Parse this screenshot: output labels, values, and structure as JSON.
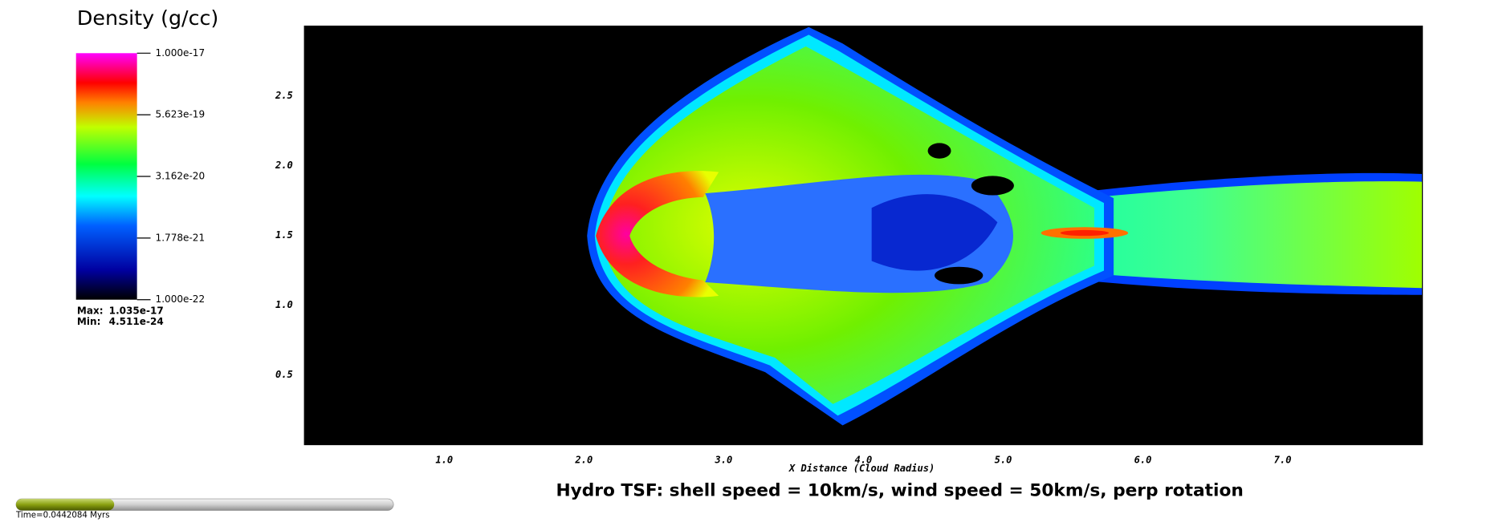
{
  "chart_data": {
    "type": "pseudocolor",
    "title": "Hydro TSF: shell speed = 10km/s, wind speed = 50km/s, perp rotation",
    "xlabel": "X Distance (Cloud Radius)",
    "xlim": [
      0,
      8
    ],
    "ylim": [
      0,
      3
    ],
    "xticks": [
      {
        "value": 1,
        "label": "1.0"
      },
      {
        "value": 2,
        "label": "2.0"
      },
      {
        "value": 3,
        "label": "3.0"
      },
      {
        "value": 4,
        "label": "4.0"
      },
      {
        "value": 5,
        "label": "5.0"
      },
      {
        "value": 6,
        "label": "6.0"
      },
      {
        "value": 7,
        "label": "7.0"
      }
    ],
    "yticks": [
      0.5,
      {
        "value": 1,
        "label": "1.0"
      },
      1.5,
      {
        "value": 2,
        "label": "2.0"
      },
      2.5
    ],
    "colorbar": {
      "title": "Density (g/cc)",
      "scale": "log",
      "clim": [
        1e-22,
        1e-17
      ],
      "ticks": [
        {
          "value": 1e-17,
          "label": "1.000e-17"
        },
        {
          "value": 5.623e-19,
          "label": "5.623e-19"
        },
        {
          "value": 3.162e-20,
          "label": "3.162e-20"
        },
        {
          "value": 1.778e-21,
          "label": "1.778e-21"
        },
        {
          "value": 1e-22,
          "label": "1.000e-22"
        }
      ],
      "max_label": "Max:",
      "max": {
        "value": 1.035e-17,
        "label": "1.035e-17"
      },
      "min_label": "Min:",
      "min": {
        "value": 4.511e-24,
        "label": "4.511e-24"
      }
    },
    "time_label": "Time=0.0442084 Myrs",
    "time_progress": 0.26
  }
}
